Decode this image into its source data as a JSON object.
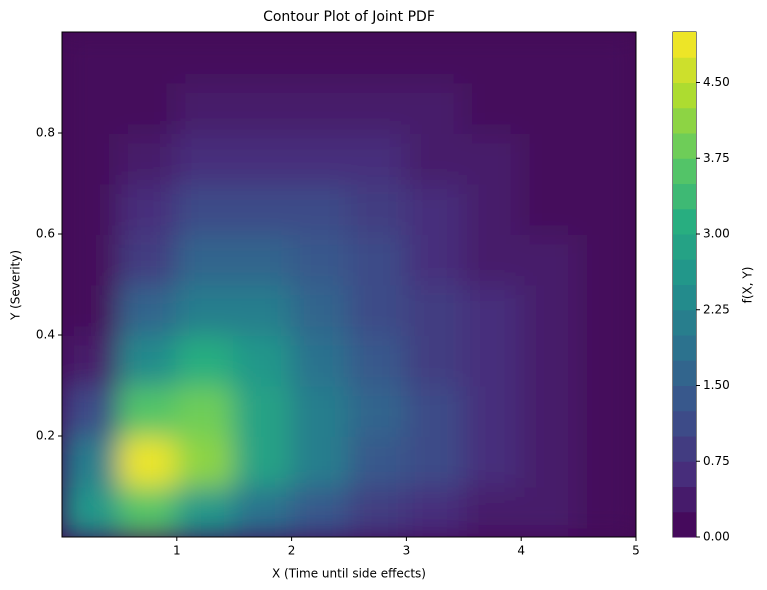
{
  "chart_data": {
    "type": "contourf",
    "title": "Contour Plot of Joint PDF",
    "x_label": "X (Time until side effects)",
    "y_label": "Y (Severity)",
    "colorbar_label": "f(X, Y)",
    "x": [
      0.25,
      0.75,
      1.25,
      1.75,
      2.25,
      2.75,
      3.25,
      3.75,
      4.25,
      4.75
    ],
    "y": [
      0.05,
      0.15,
      0.25,
      0.35,
      0.45,
      0.55,
      0.65,
      0.75,
      0.85,
      0.95
    ],
    "z": [
      [
        2.5,
        3.5,
        2.5,
        1.75,
        1.25,
        0.9,
        0.6,
        0.4,
        0.25,
        0.1
      ],
      [
        2.0,
        4.8,
        4.0,
        2.8,
        2.0,
        1.4,
        1.0,
        0.7,
        0.4,
        0.2
      ],
      [
        1.0,
        3.5,
        3.8,
        2.9,
        2.1,
        1.5,
        1.0,
        0.7,
        0.4,
        0.2
      ],
      [
        0.4,
        2.4,
        3.0,
        2.5,
        1.9,
        1.4,
        0.95,
        0.6,
        0.35,
        0.15
      ],
      [
        0.1,
        1.5,
        2.2,
        2.0,
        1.6,
        1.2,
        0.8,
        0.5,
        0.3,
        0.1
      ],
      [
        0.05,
        0.9,
        1.5,
        1.5,
        1.3,
        1.0,
        0.7,
        0.45,
        0.25,
        0.1
      ],
      [
        0.02,
        0.5,
        1.0,
        1.1,
        1.0,
        0.8,
        0.55,
        0.35,
        0.2,
        0.05
      ],
      [
        0.01,
        0.3,
        0.6,
        0.7,
        0.7,
        0.55,
        0.4,
        0.25,
        0.1,
        0.02
      ],
      [
        0,
        0.15,
        0.3,
        0.4,
        0.4,
        0.35,
        0.25,
        0.1,
        0.02,
        0.01
      ],
      [
        0,
        0.05,
        0.1,
        0.15,
        0.15,
        0.1,
        0.05,
        0.02,
        0,
        0
      ]
    ],
    "levels": [
      0,
      0.25,
      0.5,
      0.75,
      1,
      1.25,
      1.5,
      1.75,
      2,
      2.25,
      2.5,
      2.75,
      3,
      3.25,
      3.5,
      3.75,
      4,
      4.25,
      4.5,
      4.75,
      5
    ],
    "colormap": [
      "#440154",
      "#472d7b",
      "#3b528b",
      "#2c728e",
      "#21918c",
      "#28ae80",
      "#5ec962",
      "#addc30",
      "#fde725"
    ],
    "xlim": [
      0,
      5
    ],
    "ylim": [
      0,
      1
    ],
    "xticks": [
      1,
      2,
      3,
      4,
      5
    ],
    "yticks": [
      0.2,
      0.4,
      0.6,
      0.8
    ],
    "clim": [
      0,
      5
    ],
    "cticks": [
      {
        "value": 0,
        "label": "0.00"
      },
      {
        "value": 0.75,
        "label": "0.75"
      },
      {
        "value": 1.5,
        "label": "1.50"
      },
      {
        "value": 2.25,
        "label": "2.25"
      },
      {
        "value": 3,
        "label": "3.00"
      },
      {
        "value": 3.75,
        "label": "3.75"
      },
      {
        "value": 4.5,
        "label": "4.50"
      }
    ]
  }
}
